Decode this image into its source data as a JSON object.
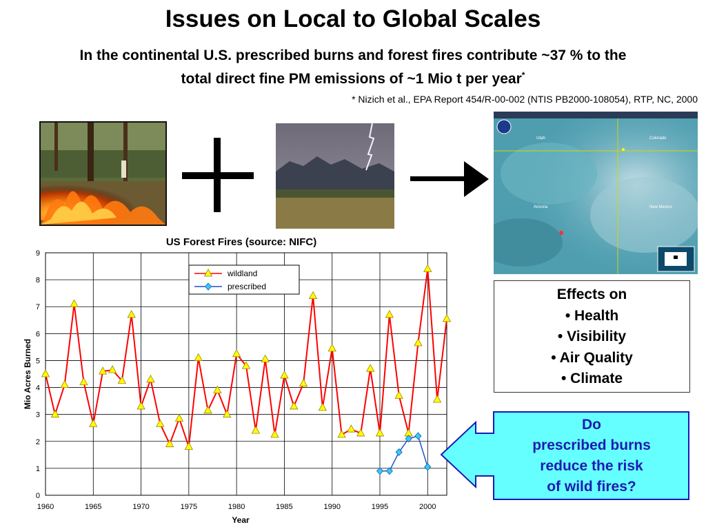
{
  "slide": {
    "title": "Issues on Local to Global Scales",
    "subtitle_line1": "In the continental U.S. prescribed burns and forest fires contribute ~37 % to the",
    "subtitle_line2": "total direct fine PM emissions of ~1 Mio t per year",
    "subtitle_mark": "*",
    "citation": "* Nizich et al., EPA Report 454/R-00-002 (NTIS PB2000-108054), RTP, NC, 2000"
  },
  "images": {
    "fire": "forest-floor-fire-photo",
    "lightning": "lightning-over-mountains-photo",
    "satellite": "satellite-smoke-plume-image",
    "satellite_labels": [
      "Utah",
      "Colorado",
      "Arizona",
      "New Mexico"
    ],
    "plus_symbol": "plus-icon",
    "arrow_symbol": "arrow-right-icon"
  },
  "effects": {
    "heading": "Effects on",
    "items": [
      "• Health",
      "• Visibility",
      "• Air Quality",
      "• Climate"
    ]
  },
  "question": {
    "lines": [
      "Do",
      "prescribed burns",
      "reduce the risk",
      "of wild fires?"
    ],
    "fill_color": "#66ffff",
    "border_color": "#1a1ab3"
  },
  "chart_data": {
    "type": "line",
    "title": "US Forest Fires (source: NIFC)",
    "xlabel": "Year",
    "ylabel": "Mio Acres Burned",
    "xlim": [
      1960,
      2002
    ],
    "ylim": [
      0,
      9
    ],
    "xticks": [
      1960,
      1965,
      1970,
      1975,
      1980,
      1985,
      1990,
      1995,
      2000
    ],
    "yticks": [
      0,
      1,
      2,
      3,
      4,
      5,
      6,
      7,
      8,
      9
    ],
    "grid": true,
    "legend_position": "top",
    "series": [
      {
        "name": "wildland",
        "color": "#ff0000",
        "marker": "triangle",
        "marker_color": "#ffff00",
        "x": [
          1960,
          1961,
          1962,
          1963,
          1964,
          1965,
          1966,
          1967,
          1968,
          1969,
          1970,
          1971,
          1972,
          1973,
          1974,
          1975,
          1976,
          1977,
          1978,
          1979,
          1980,
          1981,
          1982,
          1983,
          1984,
          1985,
          1986,
          1987,
          1988,
          1989,
          1990,
          1991,
          1992,
          1993,
          1994,
          1995,
          1996,
          1997,
          1998,
          1999,
          2000,
          2001,
          2002
        ],
        "y": [
          4.5,
          3.0,
          4.1,
          7.1,
          4.2,
          2.65,
          4.6,
          4.65,
          4.25,
          6.7,
          3.3,
          4.3,
          2.65,
          1.9,
          2.85,
          1.8,
          5.1,
          3.15,
          3.9,
          3.0,
          5.25,
          4.8,
          2.4,
          5.05,
          2.25,
          4.45,
          3.3,
          4.15,
          7.4,
          3.25,
          5.45,
          2.25,
          2.45,
          2.3,
          4.7,
          2.3,
          6.7,
          3.7,
          2.3,
          5.65,
          8.4,
          3.55,
          6.55
        ]
      },
      {
        "name": "prescribed",
        "color": "#1f50c8",
        "marker": "diamond",
        "marker_color": "#38c8ff",
        "x": [
          1995,
          1996,
          1997,
          1998,
          1999,
          2000
        ],
        "y": [
          0.9,
          0.9,
          1.6,
          2.1,
          2.2,
          1.05
        ]
      }
    ]
  }
}
